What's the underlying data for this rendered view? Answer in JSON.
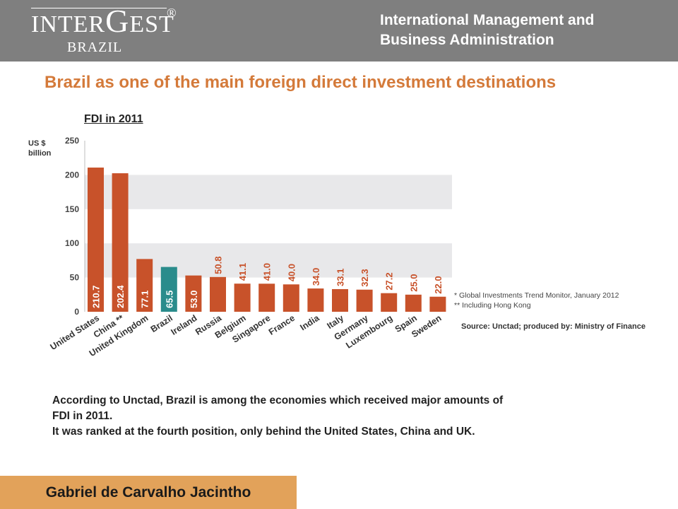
{
  "header": {
    "logo_text_1": "INTER",
    "logo_text_g": "G",
    "logo_text_2": "EST",
    "logo_registered": "®",
    "logo_sub": "BRAZIL",
    "org_line_1": "International Management and",
    "org_line_2": "Business Administration"
  },
  "slide": {
    "title": "Brazil as one of the main foreign direct investment destinations",
    "unit_line_1": "US $",
    "unit_line_2": "billion",
    "footnote_1": "*   Global Investments Trend Monitor, January 2012",
    "footnote_2": "** Including Hong Kong",
    "source": "Source: Unctad; produced by: Ministry of Finance",
    "body_line_1": "According to Unctad, Brazil is among the economies which received major amounts of",
    "body_line_2": "FDI in 2011.",
    "body_line_3": "It was ranked at the fourth position, only behind the United States, China and UK."
  },
  "footer": {
    "author": "Gabriel de Carvalho Jacintho"
  },
  "colors": {
    "header_bg": "#7f7f7f",
    "title": "#d47a3a",
    "bar": "#c8522a",
    "bar_highlight": "#2a8c8c",
    "band": "#e8e8ea",
    "author_bg": "#e2a25a"
  },
  "chart_data": {
    "type": "bar",
    "title": "FDI in 2011",
    "ylabel": "US $ billion",
    "ylim": [
      0,
      250
    ],
    "yticks": [
      0,
      50,
      100,
      150,
      200,
      250
    ],
    "grid": "alternating bands",
    "categories": [
      "United States",
      "China **",
      "United Kingdom",
      "Brazil",
      "Ireland",
      "Russia",
      "Belgium",
      "Singapore",
      "France",
      "India",
      "Italy",
      "Germany",
      "Luxembourg",
      "Spain",
      "Sweden"
    ],
    "values": [
      210.7,
      202.4,
      77.1,
      65.5,
      53.0,
      50.8,
      41.1,
      41.0,
      40.0,
      34.0,
      33.1,
      32.3,
      27.2,
      25.0,
      22.0
    ],
    "labels": [
      "210.7",
      "202.4",
      "77.1",
      "65.5",
      "53.0",
      "50.8",
      "41.1",
      "41.0",
      "40.0",
      "34.0",
      "33.1",
      "32.3",
      "27.2",
      "25.0",
      "22.0"
    ],
    "highlight": "Brazil"
  }
}
